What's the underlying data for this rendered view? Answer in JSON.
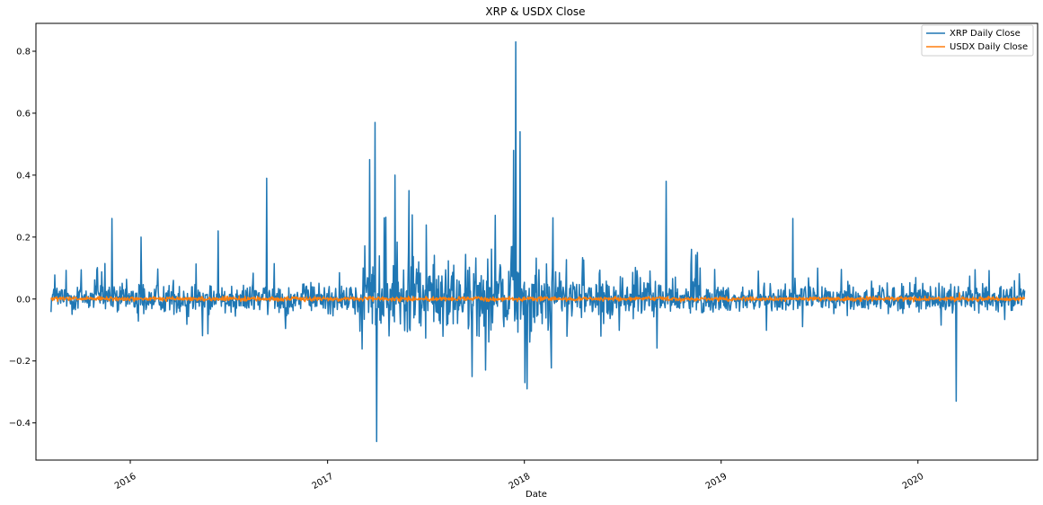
{
  "chart_data": {
    "type": "line",
    "title": "XRP & USDX Close",
    "xlabel": "Date",
    "ylabel": "",
    "xlim": [
      "2015-07-10",
      "2020-08-10"
    ],
    "ylim": [
      -0.52,
      0.89
    ],
    "yticks": [
      -0.4,
      -0.2,
      0.0,
      0.2,
      0.4,
      0.6,
      0.8
    ],
    "ytick_labels": [
      "−0.4",
      "−0.2",
      "0.0",
      "0.2",
      "0.4",
      "0.6",
      "0.8"
    ],
    "xticks": [
      "2016-01-01",
      "2017-01-01",
      "2018-01-01",
      "2019-01-01",
      "2020-01-01"
    ],
    "xtick_labels": [
      "2016",
      "2017",
      "2018",
      "2019",
      "2020"
    ],
    "grid": false,
    "legend_position": "top-right",
    "series": [
      {
        "name": "XRP Daily Close",
        "color": "#1f77b4",
        "date_range": [
          "2015-08-07",
          "2020-07-17"
        ],
        "notable_points": [
          {
            "date": "2015-11-28",
            "value": 0.26
          },
          {
            "date": "2016-01-21",
            "value": 0.2
          },
          {
            "date": "2016-06-12",
            "value": 0.22
          },
          {
            "date": "2016-09-10",
            "value": 0.39
          },
          {
            "date": "2017-03-20",
            "value": 0.45
          },
          {
            "date": "2017-03-30",
            "value": 0.57
          },
          {
            "date": "2017-04-02",
            "value": -0.46
          },
          {
            "date": "2017-05-06",
            "value": 0.4
          },
          {
            "date": "2017-06-01",
            "value": 0.35
          },
          {
            "date": "2017-12-12",
            "value": 0.48
          },
          {
            "date": "2017-12-16",
            "value": 0.83
          },
          {
            "date": "2017-12-24",
            "value": 0.54
          },
          {
            "date": "2018-01-02",
            "value": -0.27
          },
          {
            "date": "2018-01-06",
            "value": -0.29
          },
          {
            "date": "2018-09-21",
            "value": 0.38
          },
          {
            "date": "2019-05-14",
            "value": 0.26
          },
          {
            "date": "2020-03-12",
            "value": -0.33
          }
        ],
        "noise_profile": [
          {
            "from": "2015-08-07",
            "to": "2017-03-01",
            "amplitude": 0.035
          },
          {
            "from": "2017-03-01",
            "to": "2018-03-01",
            "amplitude": 0.085
          },
          {
            "from": "2018-03-01",
            "to": "2018-12-01",
            "amplitude": 0.05
          },
          {
            "from": "2018-12-01",
            "to": "2020-07-17",
            "amplitude": 0.03
          }
        ]
      },
      {
        "name": "USDX Daily Close",
        "color": "#ff7f0e",
        "date_range": [
          "2015-08-07",
          "2020-07-17"
        ],
        "noise_profile": [
          {
            "from": "2015-08-07",
            "to": "2020-07-17",
            "amplitude": 0.005
          }
        ],
        "notable_points": [
          {
            "date": "2020-03-18",
            "value": 0.02
          }
        ]
      }
    ]
  }
}
